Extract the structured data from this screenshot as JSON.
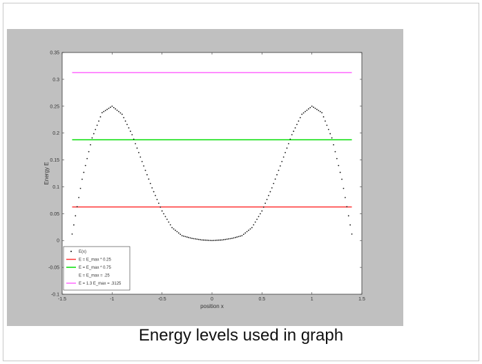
{
  "caption": "Energy levels used in graph",
  "colors": {
    "background": "#c0c0c0",
    "plot_bg": "#ffffff",
    "text": "#111111"
  },
  "chart_data": {
    "type": "line",
    "title": "",
    "xlabel": "position x",
    "ylabel": "Energy E",
    "xlim": [
      -1.5,
      1.5
    ],
    "ylim": [
      -0.1,
      0.35
    ],
    "xticks": [
      -1.5,
      -1,
      -0.5,
      0,
      0.5,
      1,
      1.5
    ],
    "xtick_labels": [
      "-1.5",
      "-1",
      "-0.5",
      "0",
      "0.5",
      "1",
      "1.5"
    ],
    "yticks": [
      -0.1,
      -0.05,
      0,
      0.05,
      0.1,
      0.15,
      0.2,
      0.25,
      0.3,
      0.35
    ],
    "ytick_labels": [
      "-0.1",
      "-0.05",
      "0",
      "0.05",
      "0.1",
      "0.15",
      "0.2",
      "0.25",
      "0.3",
      "0.35"
    ],
    "grid": false,
    "legend_position": "bottom-left",
    "series": [
      {
        "name": "E(x)",
        "style": "dotted",
        "color": "#111111",
        "x": [
          -1.4,
          -1.3,
          -1.2,
          -1.1,
          -1.0,
          -0.9,
          -0.8,
          -0.7,
          -0.6,
          -0.5,
          -0.4,
          -0.3,
          -0.2,
          -0.1,
          0.0,
          0.1,
          0.2,
          0.3,
          0.4,
          0.5,
          0.6,
          0.7,
          0.8,
          0.9,
          1.0,
          1.1,
          1.2,
          1.3,
          1.4
        ],
        "y": [
          0.012,
          0.114,
          0.191,
          0.238,
          0.25,
          0.235,
          0.197,
          0.147,
          0.098,
          0.055,
          0.024,
          0.009,
          0.004,
          0.001,
          0.0,
          0.001,
          0.004,
          0.009,
          0.024,
          0.055,
          0.098,
          0.147,
          0.197,
          0.235,
          0.25,
          0.238,
          0.191,
          0.114,
          0.012
        ]
      },
      {
        "name": "E = E_max * 0.25",
        "style": "solid",
        "color": "#ff3333",
        "constant": 0.0625
      },
      {
        "name": "E = E_max * 0.75",
        "style": "solid",
        "color": "#00dd00",
        "constant": 0.1875
      },
      {
        "name": "E = E_max = .25",
        "style": "none",
        "color": "#ffffff",
        "constant": null
      },
      {
        "name": "E = 1.3 E_max = .3125",
        "style": "solid",
        "color": "#ff66ff",
        "constant": 0.3125
      }
    ]
  }
}
